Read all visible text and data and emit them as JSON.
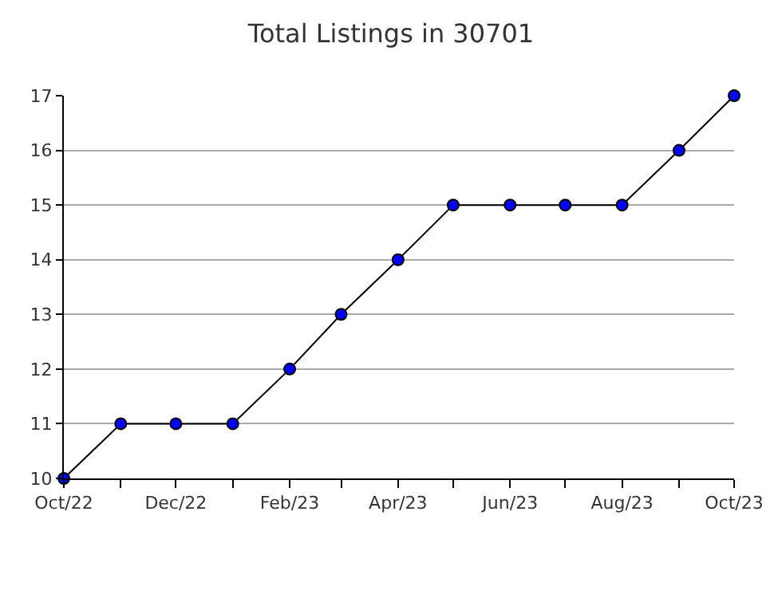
{
  "chart_data": {
    "type": "line",
    "title": "Total Listings in 30701",
    "x": [
      "2022-10",
      "2022-11",
      "2022-12",
      "2023-01",
      "2023-02",
      "2023-03",
      "2023-04",
      "2023-05",
      "2023-06",
      "2023-07",
      "2023-08",
      "2023-09",
      "2023-10"
    ],
    "series": [
      {
        "color": "#0000ff",
        "values": [
          10,
          11,
          11,
          11,
          12,
          13,
          14,
          15,
          15,
          15,
          15,
          16,
          17
        ]
      }
    ],
    "xlim": [
      "2022-10",
      "2023-10"
    ],
    "xticks": [
      {
        "value": "2022-10",
        "label": "Oct/22"
      },
      {
        "value": "2022-11",
        "label": null
      },
      {
        "value": "2022-12",
        "label": "Dec/22"
      },
      {
        "value": "2023-01",
        "label": null
      },
      {
        "value": "2023-02",
        "label": "Feb/23"
      },
      {
        "value": "2023-03",
        "label": null
      },
      {
        "value": "2023-04",
        "label": "Apr/23"
      },
      {
        "value": "2023-05",
        "label": null
      },
      {
        "value": "2023-06",
        "label": "Jun/23"
      },
      {
        "value": "2023-07",
        "label": null
      },
      {
        "value": "2023-08",
        "label": "Aug/23"
      },
      {
        "value": "2023-09",
        "label": null
      },
      {
        "value": "2023-10",
        "label": "Oct/23"
      }
    ],
    "ylim": [
      10,
      17
    ],
    "yticks": [
      10,
      11,
      12,
      13,
      14,
      15,
      16,
      17
    ],
    "grid": "y",
    "marker": "circle",
    "line_style": "solid"
  }
}
